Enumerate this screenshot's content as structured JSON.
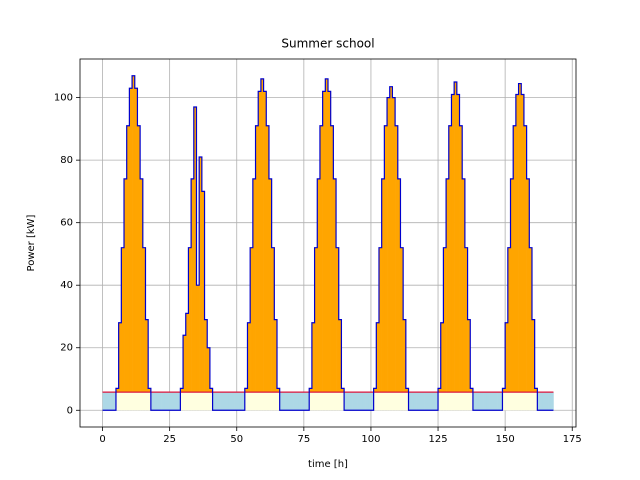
{
  "chart_data": {
    "type": "step",
    "title": "Summer school",
    "x_label": "time [h]",
    "y_label": "Power [kW]",
    "x": [
      0,
      1,
      2,
      3,
      4,
      5,
      6,
      7,
      8,
      9,
      10,
      11,
      12,
      13,
      14,
      15,
      16,
      17,
      18,
      19,
      20,
      21,
      22,
      23,
      24,
      25,
      26,
      27,
      28,
      29,
      30,
      31,
      32,
      33,
      34,
      35,
      36,
      37,
      38,
      39,
      40,
      41,
      42,
      43,
      44,
      45,
      46,
      47,
      48,
      49,
      50,
      51,
      52,
      53,
      54,
      55,
      56,
      57,
      58,
      59,
      60,
      61,
      62,
      63,
      64,
      65,
      66,
      67,
      68,
      69,
      70,
      71,
      72,
      73,
      74,
      75,
      76,
      77,
      78,
      79,
      80,
      81,
      82,
      83,
      84,
      85,
      86,
      87,
      88,
      89,
      90,
      91,
      92,
      93,
      94,
      95,
      96,
      97,
      98,
      99,
      100,
      101,
      102,
      103,
      104,
      105,
      106,
      107,
      108,
      109,
      110,
      111,
      112,
      113,
      114,
      115,
      116,
      117,
      118,
      119,
      120,
      121,
      122,
      123,
      124,
      125,
      126,
      127,
      128,
      129,
      130,
      131,
      132,
      133,
      134,
      135,
      136,
      137,
      138,
      139,
      140,
      141,
      142,
      143,
      144,
      145,
      146,
      147,
      148,
      149,
      150,
      151,
      152,
      153,
      154,
      155,
      156,
      157,
      158,
      159,
      160,
      161,
      162,
      163,
      164,
      165,
      166,
      167,
      168
    ],
    "series": [
      {
        "name": "Power",
        "color": "#0000cd",
        "values": [
          0,
          0,
          0,
          0,
          0,
          7,
          28,
          52,
          74,
          91,
          103,
          107,
          103,
          91,
          74,
          52,
          29,
          7,
          0,
          0,
          0,
          0,
          0,
          0,
          0,
          0,
          0,
          0,
          0,
          7,
          24,
          31,
          52,
          74,
          97,
          40,
          81,
          70,
          29,
          20,
          7,
          0,
          0,
          0,
          0,
          0,
          0,
          0,
          0,
          0,
          0,
          0,
          0,
          7,
          28,
          52,
          74,
          91,
          102,
          106,
          102,
          91,
          74,
          52,
          29,
          7,
          0,
          0,
          0,
          0,
          0,
          0,
          0,
          0,
          0,
          0,
          0,
          7,
          28,
          52,
          74,
          91,
          102,
          106,
          102,
          91,
          74,
          52,
          29,
          7,
          0,
          0,
          0,
          0,
          0,
          0,
          0,
          0,
          0,
          0,
          0,
          7,
          28,
          52,
          74,
          91,
          100,
          103.5,
          100,
          91,
          74,
          52,
          29,
          7,
          0,
          0,
          0,
          0,
          0,
          0,
          0,
          0,
          0,
          0,
          0,
          7,
          28,
          52,
          74,
          91,
          101,
          105,
          101,
          91,
          74,
          52,
          29,
          7,
          0,
          0,
          0,
          0,
          0,
          0,
          0,
          0,
          0,
          0,
          0,
          7,
          28,
          52,
          74,
          91,
          101,
          104.5,
          101,
          91,
          74,
          52,
          29,
          7,
          0,
          0,
          0,
          0,
          0,
          0,
          0
        ]
      }
    ],
    "threshold": 5.8,
    "threshold_color": "#dc143c",
    "fill_above": "#ffa500",
    "fill_below_gap": "#add8e6",
    "fill_base": "#ffffe0",
    "xlim": [
      -8.4,
      176.4
    ],
    "ylim": [
      -5.35,
      112.35
    ],
    "xticks": [
      0,
      25,
      50,
      75,
      100,
      125,
      150,
      175
    ],
    "yticks": [
      0,
      20,
      40,
      60,
      80,
      100
    ],
    "grid": true
  }
}
